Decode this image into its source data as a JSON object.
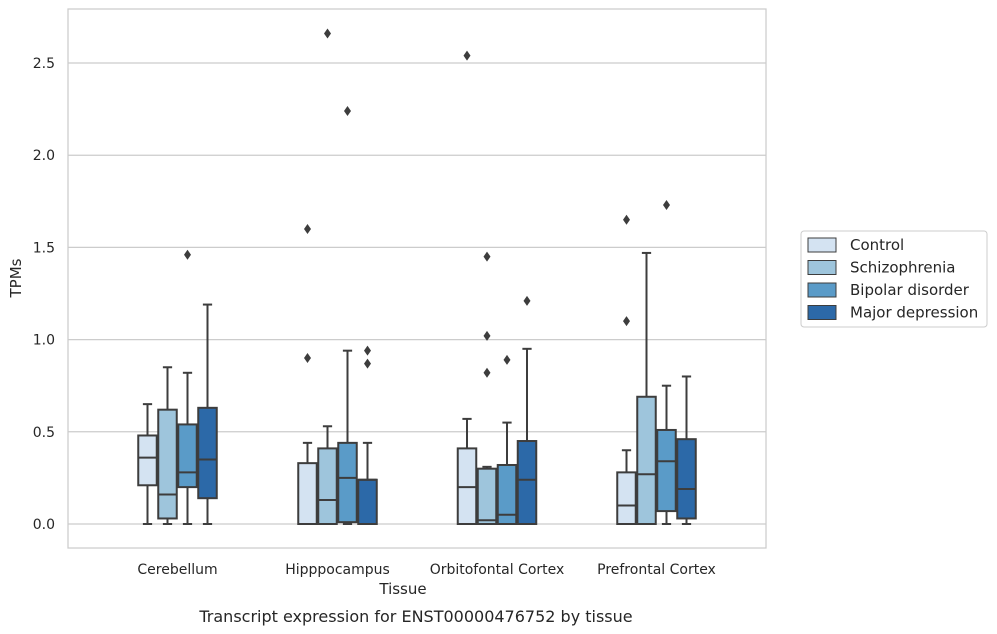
{
  "caption": "Transcript expression for ENST00000476752 by tissue",
  "chart_data": {
    "type": "box",
    "xlabel": "Tissue",
    "ylabel": "TPMs",
    "ylim": [
      -0.13,
      2.8
    ],
    "yticks": [
      0.0,
      0.5,
      1.0,
      1.5,
      2.0,
      2.5
    ],
    "ytick_labels": [
      "0.0",
      "0.5",
      "1.0",
      "1.5",
      "2.0",
      "2.5"
    ],
    "grid": "horizontal",
    "legend_position": "right",
    "categories": [
      "Cerebellum",
      "Hipppocampus",
      "Orbitofontal Cortex",
      "Prefrontal Cortex"
    ],
    "series": [
      {
        "name": "Control",
        "color": "#d4e3f2",
        "boxes": [
          {
            "whisker_low": 0.0,
            "q1": 0.21,
            "median": 0.36,
            "q3": 0.48,
            "whisker_high": 0.65,
            "outliers": []
          },
          {
            "whisker_low": 0.0,
            "q1": 0.0,
            "median": 0.0,
            "q3": 0.33,
            "whisker_high": 0.44,
            "outliers": [
              0.9,
              1.6
            ]
          },
          {
            "whisker_low": 0.0,
            "q1": 0.0,
            "median": 0.2,
            "q3": 0.41,
            "whisker_high": 0.57,
            "outliers": [
              2.54
            ]
          },
          {
            "whisker_low": 0.0,
            "q1": 0.0,
            "median": 0.1,
            "q3": 0.28,
            "whisker_high": 0.4,
            "outliers": [
              1.1,
              1.65
            ]
          }
        ]
      },
      {
        "name": "Schizophrenia",
        "color": "#9ec5dc",
        "boxes": [
          {
            "whisker_low": 0.0,
            "q1": 0.03,
            "median": 0.16,
            "q3": 0.62,
            "whisker_high": 0.85,
            "outliers": []
          },
          {
            "whisker_low": 0.0,
            "q1": 0.0,
            "median": 0.13,
            "q3": 0.41,
            "whisker_high": 0.53,
            "outliers": [
              2.66
            ]
          },
          {
            "whisker_low": 0.0,
            "q1": 0.0,
            "median": 0.02,
            "q3": 0.3,
            "whisker_high": 0.31,
            "outliers": [
              0.82,
              1.02,
              1.45
            ]
          },
          {
            "whisker_low": 0.0,
            "q1": 0.0,
            "median": 0.27,
            "q3": 0.69,
            "whisker_high": 1.47,
            "outliers": []
          }
        ]
      },
      {
        "name": "Bipolar disorder",
        "color": "#5a9bc8",
        "boxes": [
          {
            "whisker_low": 0.0,
            "q1": 0.2,
            "median": 0.28,
            "q3": 0.54,
            "whisker_high": 0.82,
            "outliers": [
              1.46
            ]
          },
          {
            "whisker_low": 0.0,
            "q1": 0.01,
            "median": 0.25,
            "q3": 0.44,
            "whisker_high": 0.94,
            "outliers": [
              2.24
            ]
          },
          {
            "whisker_low": 0.0,
            "q1": 0.0,
            "median": 0.05,
            "q3": 0.32,
            "whisker_high": 0.55,
            "outliers": [
              0.89
            ]
          },
          {
            "whisker_low": 0.0,
            "q1": 0.07,
            "median": 0.34,
            "q3": 0.51,
            "whisker_high": 0.75,
            "outliers": [
              1.73
            ]
          }
        ]
      },
      {
        "name": "Major depression",
        "color": "#2c69a8",
        "boxes": [
          {
            "whisker_low": 0.0,
            "q1": 0.14,
            "median": 0.35,
            "q3": 0.63,
            "whisker_high": 1.19,
            "outliers": []
          },
          {
            "whisker_low": 0.0,
            "q1": 0.0,
            "median": 0.24,
            "q3": 0.24,
            "whisker_high": 0.44,
            "outliers": [
              0.87,
              0.94
            ]
          },
          {
            "whisker_low": 0.0,
            "q1": 0.0,
            "median": 0.24,
            "q3": 0.45,
            "whisker_high": 0.95,
            "outliers": [
              1.21
            ]
          },
          {
            "whisker_low": 0.0,
            "q1": 0.03,
            "median": 0.19,
            "q3": 0.46,
            "whisker_high": 0.8,
            "outliers": []
          }
        ]
      }
    ]
  }
}
